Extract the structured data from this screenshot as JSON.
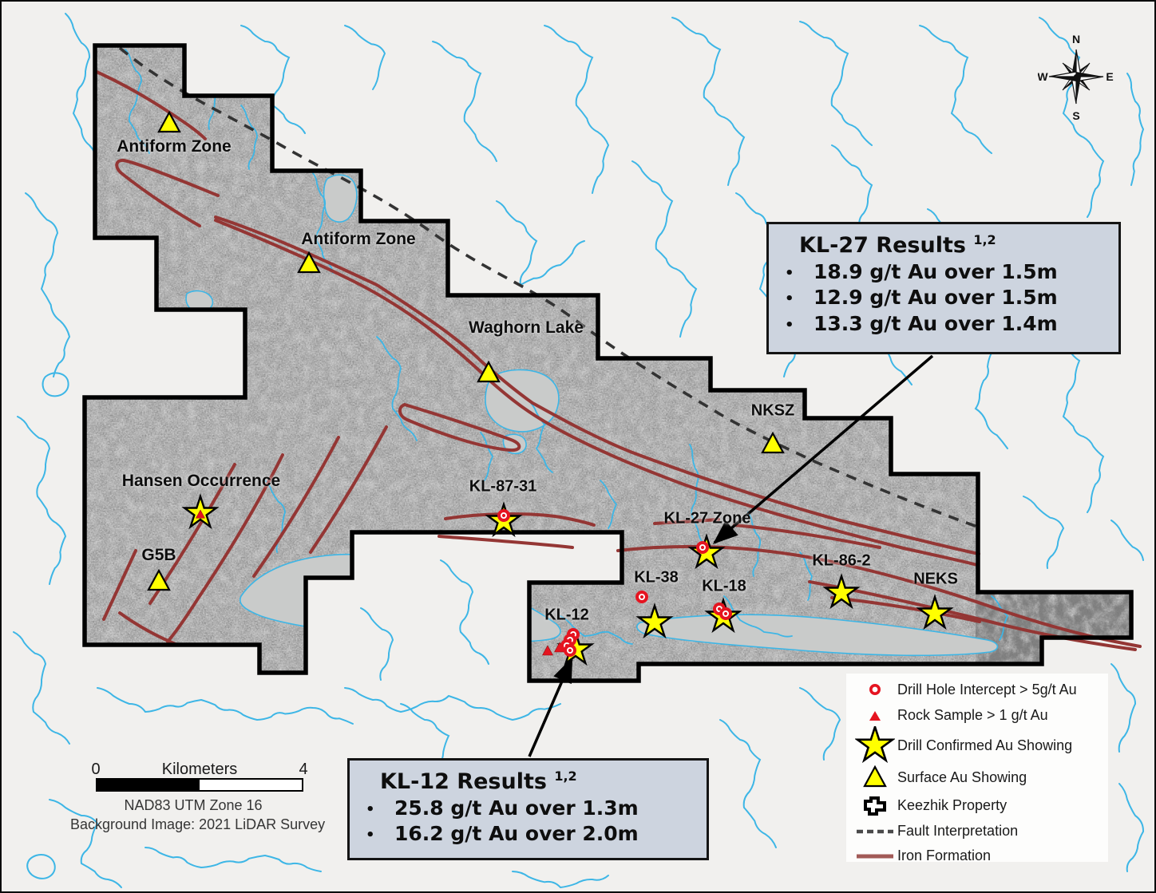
{
  "map_labels": {
    "antiform_nw": "Antiform Zone",
    "antiform_central": "Antiform Zone",
    "waghorn": "Waghorn Lake",
    "nksz": "NKSZ",
    "hansen": "Hansen Occurrence",
    "g5b": "G5B",
    "kl8731": "KL-87-31",
    "kl27zone": "KL-27 Zone",
    "kl38": "KL-38",
    "kl18": "KL-18",
    "kl862": "KL-86-2",
    "neks": "NEKS",
    "kl12": "KL-12"
  },
  "callouts": {
    "kl27": {
      "title": "KL-27 Results",
      "sup": "1,2",
      "bullets": [
        "18.9 g/t Au over 1.5m",
        "12.9 g/t Au over 1.5m",
        "13.3 g/t Au over 1.4m"
      ]
    },
    "kl12": {
      "title": "KL-12 Results",
      "sup": "1,2",
      "bullets": [
        "25.8 g/t Au over 1.3m",
        "16.2 g/t Au over 2.0m"
      ]
    }
  },
  "legend": {
    "items": [
      {
        "icon": "drill-intercept-icon",
        "label": "Drill Hole Intercept > 5g/t Au"
      },
      {
        "icon": "rock-sample-icon",
        "label": "Rock Sample > 1 g/t Au"
      },
      {
        "icon": "drill-confirmed-icon",
        "label": "Drill Confirmed Au Showing"
      },
      {
        "icon": "surface-showing-icon",
        "label": "Surface Au Showing"
      },
      {
        "icon": "property-outline-icon",
        "label": "Keezhik Property"
      },
      {
        "icon": "fault-line-icon",
        "label": "Fault Interpretation"
      },
      {
        "icon": "iron-formation-icon",
        "label": "Iron Formation"
      }
    ]
  },
  "scalebar": {
    "start": "0",
    "unit": "Kilometers",
    "end": "4",
    "line1": "NAD83 UTM Zone 16",
    "line2": "Background Image: 2021 LiDAR Survey"
  },
  "compass": {
    "n": "N",
    "e": "E",
    "s": "S",
    "w": "W"
  },
  "colors": {
    "water": "#3db6e6",
    "iron_formation": "#943634",
    "marker_red": "#e51420",
    "showing_yellow": "#ffff00",
    "callout_bg": "#cdd4df",
    "property_fill": "#a9a9a9",
    "fault": "#333333"
  }
}
